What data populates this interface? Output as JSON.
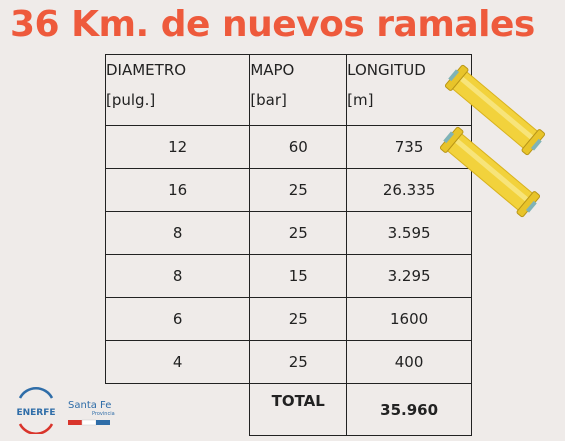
{
  "title": "36 Km. de nuevos ramales",
  "table": {
    "headers": [
      {
        "line1": "DIAMETRO",
        "line2": "[pulg.]"
      },
      {
        "line1": "MAPO",
        "line2": "[bar]"
      },
      {
        "line1": "LONGITUD",
        "line2": "[m]"
      }
    ],
    "rows": [
      [
        "12",
        "60",
        "735"
      ],
      [
        "16",
        "25",
        "26.335"
      ],
      [
        "8",
        "25",
        "3.595"
      ],
      [
        "8",
        "15",
        "3.295"
      ],
      [
        "6",
        "25",
        "1600"
      ],
      [
        "4",
        "25",
        "400"
      ]
    ],
    "total_label": "TOTAL",
    "total_value": "35.960"
  },
  "logos": {
    "enerfe": "ENERFE",
    "santafe": "Santa Fe",
    "santafe_sub": "Provincia"
  },
  "colors": {
    "title": "#ee5a3c",
    "background": "#efebe9",
    "pipe": "#f2d23c",
    "logo_blue": "#2f6da8",
    "logo_red": "#d9342b"
  }
}
